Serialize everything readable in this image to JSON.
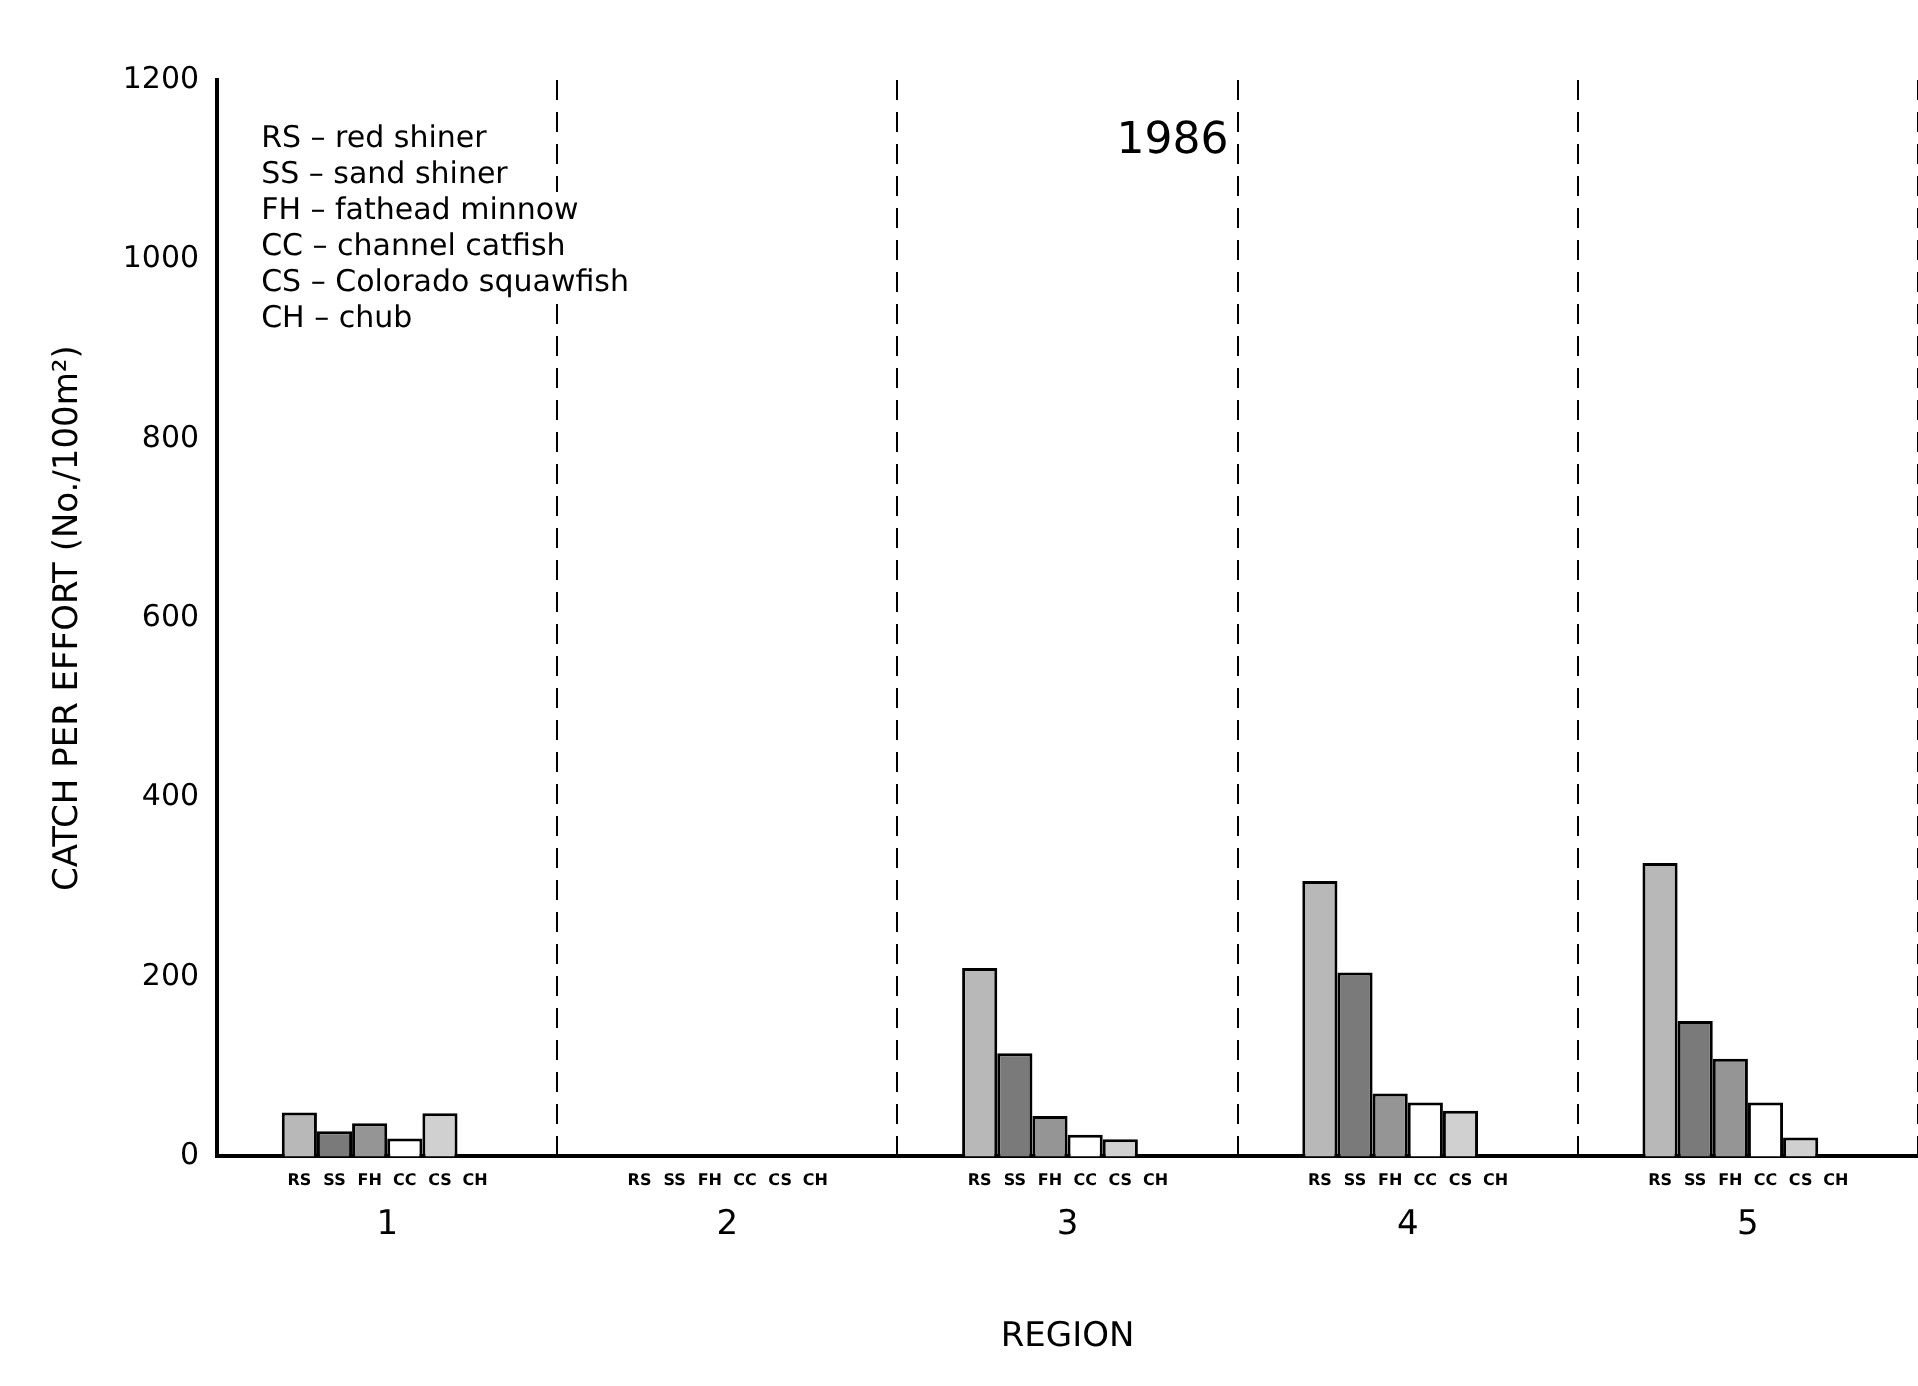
{
  "chart_data": {
    "type": "bar",
    "title": "1986",
    "xlabel": "REGION",
    "ylabel": "CATCH PER EFFORT (No./100m²)",
    "categories": [
      "1",
      "2",
      "3",
      "4",
      "5"
    ],
    "series": [
      {
        "name": "RS",
        "color": "#b8b8b8",
        "values": [
          49,
          0,
          210,
          307,
          327
        ]
      },
      {
        "name": "SS",
        "color": "#7a7a7a",
        "values": [
          28,
          0,
          115,
          205,
          151
        ]
      },
      {
        "name": "FH",
        "color": "#959595",
        "values": [
          37,
          0,
          45,
          70,
          109
        ]
      },
      {
        "name": "CC",
        "color": "#ffffff",
        "values": [
          20,
          0,
          24,
          60,
          60
        ]
      },
      {
        "name": "CS",
        "color": "#d0d0d0",
        "values": [
          48,
          0,
          19,
          51,
          21
        ]
      },
      {
        "name": "CH",
        "color": "#000000",
        "values": [
          0,
          0,
          0,
          0,
          0
        ]
      }
    ],
    "ylim": [
      0,
      1200
    ],
    "yticks": [
      0,
      200,
      400,
      600,
      800,
      1000,
      1200
    ],
    "grid": "x",
    "legend": "bottom",
    "annotations": [
      "RS – red shiner",
      "SS – sand shiner",
      "FH – fathead minnow",
      "CC – channel catfish",
      "CS – Colorado squawfish",
      "CH – chub"
    ]
  }
}
